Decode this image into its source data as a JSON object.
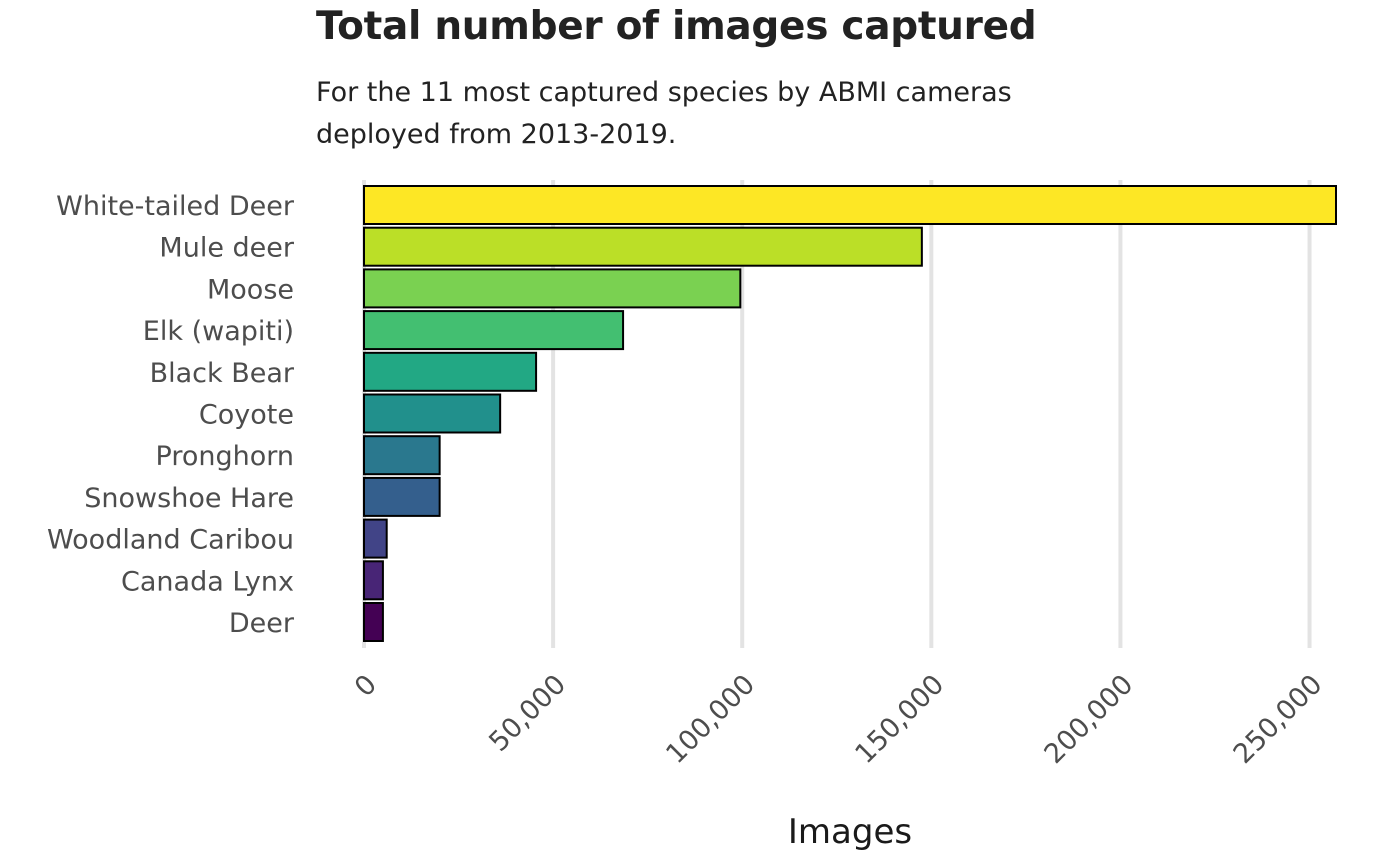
{
  "chart_data": {
    "type": "bar",
    "orientation": "horizontal",
    "title": "Total number of images captured",
    "subtitle": "For the 11 most captured species by ABMI cameras deployed from 2013-2019.",
    "xlabel": "Images",
    "ylabel": "",
    "xlim": [
      0,
      257000
    ],
    "xticks": [
      0,
      50000,
      100000,
      150000,
      200000,
      250000
    ],
    "xtick_labels": [
      "0",
      "50,000",
      "100,000",
      "150,000",
      "200,000",
      "250,000"
    ],
    "grid": "vertical major gridlines",
    "legend": "none",
    "categories": [
      "White-tailed Deer",
      "Mule deer",
      "Moose",
      "Elk (wapiti)",
      "Black Bear",
      "Coyote",
      "Pronghorn",
      "Snowshoe Hare",
      "Woodland Caribou",
      "Canada Lynx",
      "Deer"
    ],
    "values": [
      257000,
      147500,
      99500,
      68500,
      45500,
      36000,
      20000,
      20000,
      6000,
      5000,
      5000
    ],
    "colors": [
      "#FDE725",
      "#BBDF27",
      "#7AD151",
      "#43BF71",
      "#22A884",
      "#21908C",
      "#2A788E",
      "#345F8D",
      "#414487",
      "#482576",
      "#440154"
    ],
    "bar_outline_color": "#000000",
    "grid_color": "#e3e3e3"
  }
}
